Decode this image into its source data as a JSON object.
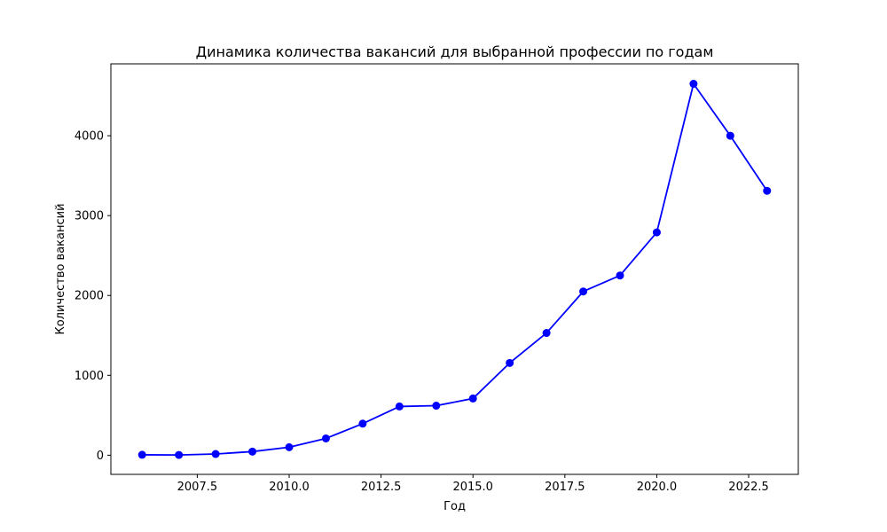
{
  "chart_data": {
    "type": "line",
    "title": "Динамика количества вакансий для выбранной профессии по годам",
    "xlabel": "Год",
    "ylabel": "Количество вакансий",
    "xlim": [
      2005.15,
      2023.85
    ],
    "ylim": [
      -240,
      4900
    ],
    "x_ticks": [
      2007.5,
      2010.0,
      2012.5,
      2015.0,
      2017.5,
      2020.0,
      2022.5
    ],
    "x_tick_labels": [
      "2007.5",
      "2010.0",
      "2012.5",
      "2015.0",
      "2017.5",
      "2020.0",
      "2022.5"
    ],
    "y_ticks": [
      0,
      1000,
      2000,
      3000,
      4000
    ],
    "y_tick_labels": [
      "0",
      "1000",
      "2000",
      "3000",
      "4000"
    ],
    "grid": false,
    "series": [
      {
        "color": "#0000ff",
        "marker": "circle",
        "x": [
          2006,
          2007,
          2008,
          2009,
          2010,
          2011,
          2012,
          2013,
          2014,
          2015,
          2016,
          2017,
          2018,
          2019,
          2020,
          2021,
          2022,
          2023
        ],
        "y": [
          5,
          3,
          15,
          45,
          100,
          210,
          395,
          610,
          620,
          710,
          1155,
          1530,
          2050,
          2250,
          2790,
          4650,
          4000,
          3310
        ]
      }
    ]
  }
}
